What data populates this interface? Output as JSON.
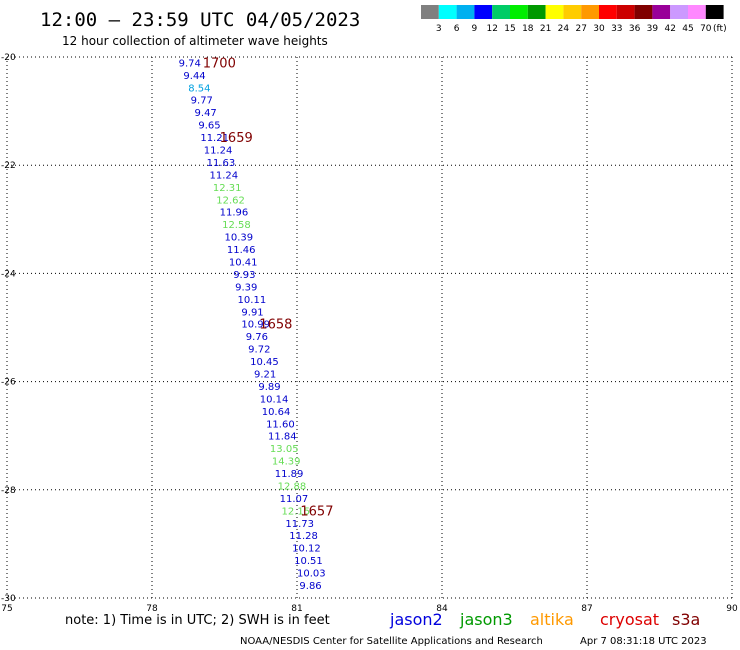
{
  "header": {
    "title": "12:00 — 23:59 UTC 04/05/2023",
    "subtitle": "12 hour collection of altimeter wave heights"
  },
  "colorbar": {
    "colors": [
      "#808080",
      "#00ffff",
      "#00b0f0",
      "#0000ff",
      "#00cc66",
      "#00ee00",
      "#009900",
      "#ffff00",
      "#ffcc00",
      "#ff9900",
      "#ff0000",
      "#cc0000",
      "#800000",
      "#990099",
      "#cc99ff",
      "#ff88ff",
      "#000000"
    ],
    "labels": [
      "3",
      "6",
      "9",
      "12",
      "15",
      "18",
      "21",
      "24",
      "27",
      "30",
      "33",
      "36",
      "39",
      "42",
      "45",
      "70"
    ],
    "unit": "(ft)"
  },
  "chart_data": {
    "type": "scatter",
    "title": "12:00 — 23:59 UTC 04/05/2023",
    "subtitle": "12 hour collection of altimeter wave heights",
    "xlim": [
      75,
      90
    ],
    "ylim": [
      -30,
      -20
    ],
    "x_ticks": [
      "75",
      "78",
      "81",
      "84",
      "87",
      "90"
    ],
    "y_ticks": [
      "-20",
      "-22",
      "-24",
      "-26",
      "-28",
      "-30"
    ],
    "grid": true,
    "points": [
      {
        "lon": 78.55,
        "lat": -20.1,
        "swh": "9.74",
        "color": "#0000cc"
      },
      {
        "lon": 78.65,
        "lat": -20.33,
        "swh": "9.44",
        "color": "#0000cc"
      },
      {
        "lon": 78.75,
        "lat": -20.56,
        "swh": "8.54",
        "color": "#00a0e0"
      },
      {
        "lon": 78.8,
        "lat": -20.79,
        "swh": "9.77",
        "color": "#0000cc"
      },
      {
        "lon": 78.88,
        "lat": -21.02,
        "swh": "9.47",
        "color": "#0000cc"
      },
      {
        "lon": 78.96,
        "lat": -21.25,
        "swh": "9.65",
        "color": "#0000cc"
      },
      {
        "lon": 79.0,
        "lat": -21.48,
        "swh": "11.21",
        "color": "#0000cc"
      },
      {
        "lon": 79.07,
        "lat": -21.71,
        "swh": "11.24",
        "color": "#0000cc"
      },
      {
        "lon": 79.13,
        "lat": -21.94,
        "swh": "11.63",
        "color": "#0000cc"
      },
      {
        "lon": 79.19,
        "lat": -22.17,
        "swh": "11.24",
        "color": "#0000cc"
      },
      {
        "lon": 79.26,
        "lat": -22.4,
        "swh": "12.31",
        "color": "#66dd55"
      },
      {
        "lon": 79.33,
        "lat": -22.63,
        "swh": "12.62",
        "color": "#66dd55"
      },
      {
        "lon": 79.4,
        "lat": -22.86,
        "swh": "11.96",
        "color": "#0000cc"
      },
      {
        "lon": 79.45,
        "lat": -23.09,
        "swh": "12.58",
        "color": "#66dd55"
      },
      {
        "lon": 79.5,
        "lat": -23.32,
        "swh": "10.39",
        "color": "#0000cc"
      },
      {
        "lon": 79.55,
        "lat": -23.55,
        "swh": "11.46",
        "color": "#0000cc"
      },
      {
        "lon": 79.59,
        "lat": -23.78,
        "swh": "10.41",
        "color": "#0000cc"
      },
      {
        "lon": 79.68,
        "lat": -24.01,
        "swh": "9.93",
        "color": "#0000cc"
      },
      {
        "lon": 79.72,
        "lat": -24.24,
        "swh": "9.39",
        "color": "#0000cc"
      },
      {
        "lon": 79.77,
        "lat": -24.47,
        "swh": "10.11",
        "color": "#0000cc"
      },
      {
        "lon": 79.85,
        "lat": -24.7,
        "swh": "9.91",
        "color": "#0000cc"
      },
      {
        "lon": 79.85,
        "lat": -24.93,
        "swh": "10.99",
        "color": "#0000cc"
      },
      {
        "lon": 79.94,
        "lat": -25.16,
        "swh": "9.76",
        "color": "#0000cc"
      },
      {
        "lon": 79.99,
        "lat": -25.39,
        "swh": "9.72",
        "color": "#0000cc"
      },
      {
        "lon": 80.03,
        "lat": -25.62,
        "swh": "10.45",
        "color": "#0000cc"
      },
      {
        "lon": 80.11,
        "lat": -25.85,
        "swh": "9.21",
        "color": "#0000cc"
      },
      {
        "lon": 80.2,
        "lat": -26.08,
        "swh": "9.89",
        "color": "#0000cc"
      },
      {
        "lon": 80.23,
        "lat": -26.31,
        "swh": "10.14",
        "color": "#0000cc"
      },
      {
        "lon": 80.27,
        "lat": -26.54,
        "swh": "10.64",
        "color": "#0000cc"
      },
      {
        "lon": 80.36,
        "lat": -26.77,
        "swh": "11.60",
        "color": "#0000cc"
      },
      {
        "lon": 80.4,
        "lat": -27.0,
        "swh": "11.84",
        "color": "#0000cc"
      },
      {
        "lon": 80.44,
        "lat": -27.23,
        "swh": "13.05",
        "color": "#66dd55"
      },
      {
        "lon": 80.48,
        "lat": -27.46,
        "swh": "14.39",
        "color": "#66dd55"
      },
      {
        "lon": 80.54,
        "lat": -27.69,
        "swh": "11.89",
        "color": "#0000cc"
      },
      {
        "lon": 80.6,
        "lat": -27.92,
        "swh": "12.88",
        "color": "#66dd55"
      },
      {
        "lon": 80.64,
        "lat": -28.15,
        "swh": "11.07",
        "color": "#0000cc"
      },
      {
        "lon": 80.68,
        "lat": -28.38,
        "swh": "12.15",
        "color": "#66dd55"
      },
      {
        "lon": 80.76,
        "lat": -28.61,
        "swh": "11.73",
        "color": "#0000cc"
      },
      {
        "lon": 80.84,
        "lat": -28.84,
        "swh": "11.28",
        "color": "#0000cc"
      },
      {
        "lon": 80.9,
        "lat": -29.07,
        "swh": "10.12",
        "color": "#0000cc"
      },
      {
        "lon": 80.94,
        "lat": -29.3,
        "swh": "10.51",
        "color": "#0000cc"
      },
      {
        "lon": 81.0,
        "lat": -29.53,
        "swh": "10.03",
        "color": "#0000cc"
      },
      {
        "lon": 81.05,
        "lat": -29.76,
        "swh": "9.86",
        "color": "#0000cc"
      }
    ],
    "time_marks": [
      {
        "lon": 79.05,
        "lat": -20.1,
        "text": "1700"
      },
      {
        "lon": 79.4,
        "lat": -21.48,
        "text": "1659"
      },
      {
        "lon": 80.22,
        "lat": -24.93,
        "text": "1658"
      },
      {
        "lon": 81.07,
        "lat": -28.38,
        "text": "1657"
      }
    ]
  },
  "footer": {
    "note": "note: 1) Time is in UTC; 2) SWH is in feet",
    "credit": "NOAA/NESDIS Center for Satellite Applications and Research",
    "timestamp": "Apr  7 08:31:18 UTC 2023",
    "satellites": [
      {
        "name": "jason2",
        "color": "#0000dd"
      },
      {
        "name": "jason3",
        "color": "#009900"
      },
      {
        "name": "altika",
        "color": "#ff9900"
      },
      {
        "name": "cryosat",
        "color": "#dd0000"
      },
      {
        "name": "s3a",
        "color": "#800000"
      }
    ]
  }
}
